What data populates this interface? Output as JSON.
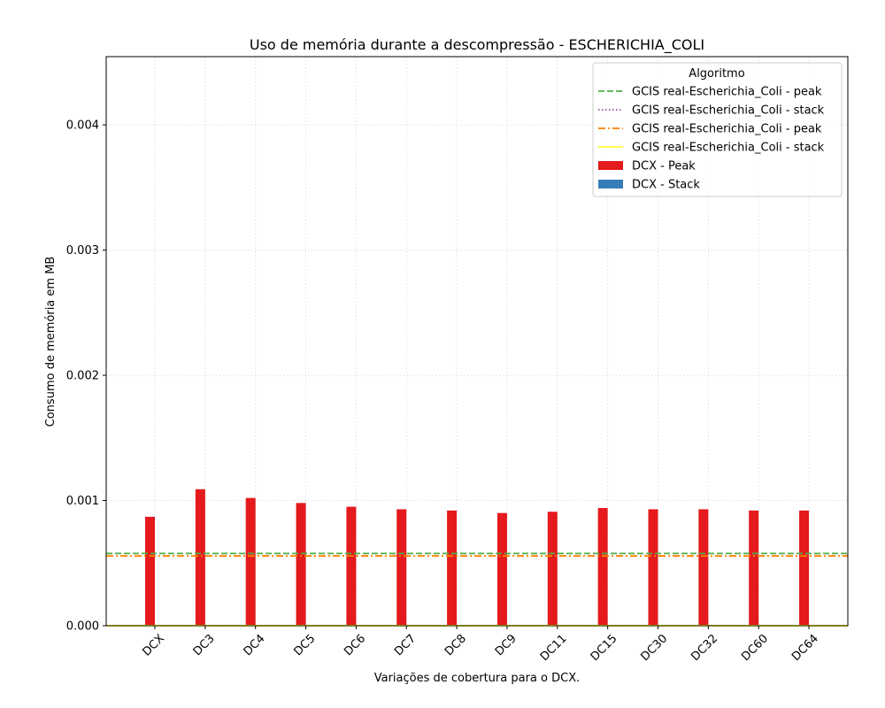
{
  "chart_data": {
    "type": "bar",
    "title": "Uso de memória durante a descompressão -  ESCHERICHIA_COLI",
    "xlabel": "Variações de cobertura para o DCX.",
    "ylabel": "Consumo de memória em MB",
    "ylim": [
      0,
      0.004545
    ],
    "yticks": [
      "0.000",
      "0.001",
      "0.002",
      "0.003",
      "0.004"
    ],
    "ytick_values": [
      0,
      0.001,
      0.002,
      0.003,
      0.004
    ],
    "grid": true,
    "categories": [
      "DCX",
      "DC3",
      "DC4",
      "DC5",
      "DC6",
      "DC7",
      "DC8",
      "DC9",
      "DC11",
      "DC15",
      "DC30",
      "DC32",
      "DC60",
      "DC64"
    ],
    "series": [
      {
        "name": "DCX - Peak",
        "color": "#e41a1c",
        "values": [
          0.00087,
          0.00109,
          0.00102,
          0.00098,
          0.00095,
          0.00093,
          0.00092,
          0.0009,
          0.00091,
          0.00094,
          0.00093,
          0.00093,
          0.00092,
          0.00092
        ]
      },
      {
        "name": "DCX - Stack",
        "color": "#377eb8",
        "values": [
          0,
          0,
          0,
          0,
          0,
          0,
          0,
          0,
          0,
          0,
          0,
          0,
          0,
          0
        ]
      }
    ],
    "reference_lines": [
      {
        "name": "GCIS real-Escherichia_Coli - peak",
        "value": 0.000577,
        "color": "#4daf4a",
        "style": "dashed"
      },
      {
        "name": "GCIS real-Escherichia_Coli - stack",
        "value": 5e-07,
        "color": "#984ea3",
        "style": "dotted"
      },
      {
        "name": "GCIS real-Escherichia_Coli - peak",
        "value": 0.000557,
        "color": "#ff7f00",
        "style": "dashdot"
      },
      {
        "name": "GCIS real-Escherichia_Coli - stack",
        "value": 5e-07,
        "color": "#ffff33",
        "style": "solid"
      }
    ],
    "legend": {
      "title": "Algoritmo",
      "position": "upper right"
    }
  }
}
